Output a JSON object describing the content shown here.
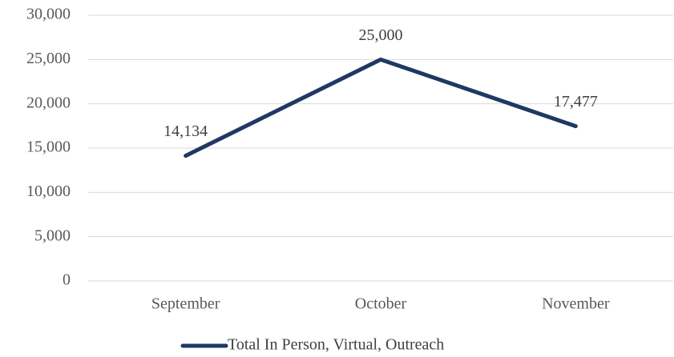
{
  "chart_data": {
    "type": "line",
    "categories": [
      "September",
      "October",
      "November"
    ],
    "series": [
      {
        "name": "Total In Person, Virtual, Outreach",
        "color": "#1f3864",
        "values": [
          14134,
          25000,
          17477
        ],
        "value_labels": [
          "14,134",
          "25,000",
          "17,477"
        ]
      }
    ],
    "ylim": [
      0,
      30000
    ],
    "yticks": [
      0,
      {
        "value": 5000,
        "label": "5,000"
      },
      {
        "value": 10000,
        "label": "10,000"
      },
      {
        "value": 15000,
        "label": "15,000"
      },
      {
        "value": 20000,
        "label": "20,000"
      },
      {
        "value": 25000,
        "label": "25,000"
      },
      {
        "value": 30000,
        "label": "30,000"
      }
    ],
    "grid": true,
    "legend": "bottom"
  }
}
